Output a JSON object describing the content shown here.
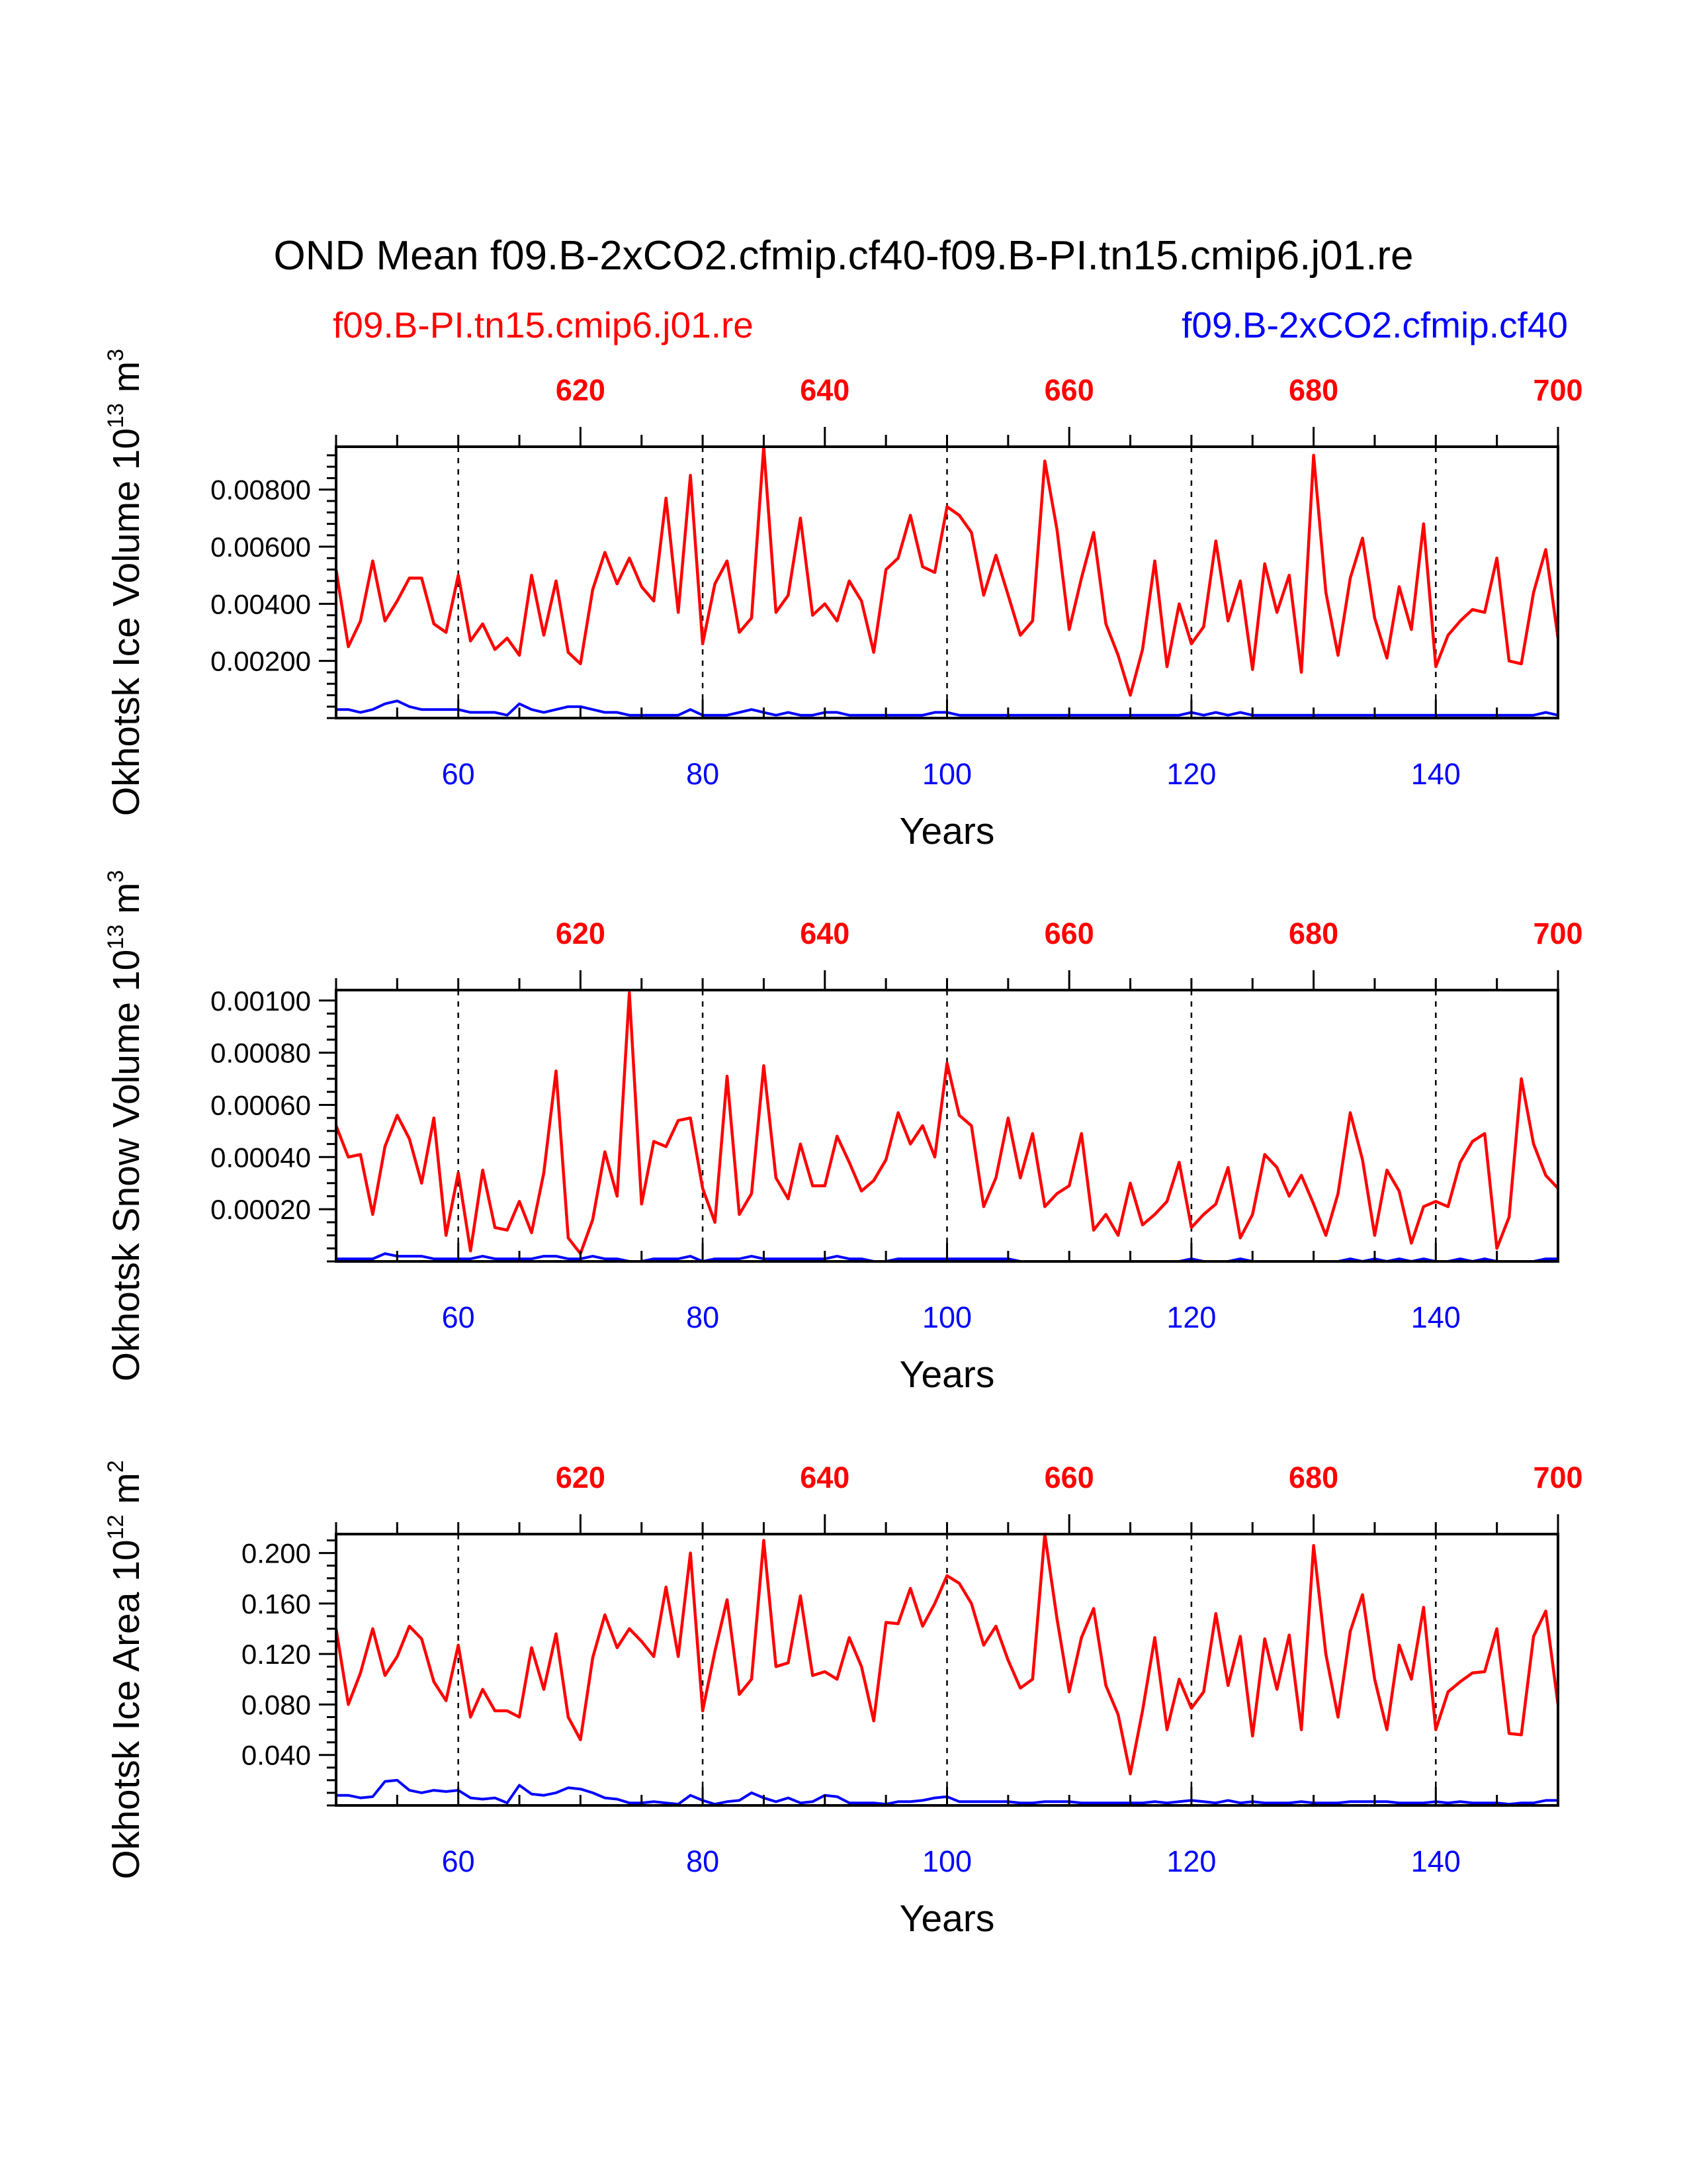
{
  "title": "OND Mean f09.B-2xCO2.cfmip.cf40-f09.B-PI.tn15.cmip6.j01.re",
  "legend": {
    "red": "f09.B-PI.tn15.cmip6.j01.re",
    "blue": "f09.B-2xCO2.cfmip.cf40"
  },
  "colors": {
    "red": "#ff0000",
    "blue": "#0000ff",
    "axis": "#000000"
  },
  "chart_data": [
    {
      "type": "line",
      "ylabel_main": "Okhotsk Ice Volume 10",
      "ylabel_exp": "13",
      "ylabel_unit": "m",
      "ylabel_unit_exp": "3",
      "xlabel": "Years",
      "xlim": [
        50,
        150
      ],
      "ylim": [
        0,
        0.0095
      ],
      "top_xlim": [
        600,
        700
      ],
      "top_ticks": [
        "620",
        "640",
        "660",
        "680",
        "700"
      ],
      "top_tick_values": [
        620,
        640,
        660,
        680,
        700
      ],
      "bottom_ticks": [
        "60",
        "80",
        "100",
        "120",
        "140"
      ],
      "bottom_tick_values": [
        60,
        80,
        100,
        120,
        140
      ],
      "y_ticks": [
        "0.00200",
        "0.00400",
        "0.00600",
        "0.00800"
      ],
      "y_tick_values": [
        0.002,
        0.004,
        0.006,
        0.008
      ],
      "y_minor_step": 0.0004,
      "x": [
        50,
        51,
        52,
        53,
        54,
        55,
        56,
        57,
        58,
        59,
        60,
        61,
        62,
        63,
        64,
        65,
        66,
        67,
        68,
        69,
        70,
        71,
        72,
        73,
        74,
        75,
        76,
        77,
        78,
        79,
        80,
        81,
        82,
        83,
        84,
        85,
        86,
        87,
        88,
        89,
        90,
        91,
        92,
        93,
        94,
        95,
        96,
        97,
        98,
        99,
        100,
        101,
        102,
        103,
        104,
        105,
        106,
        107,
        108,
        109,
        110,
        111,
        112,
        113,
        114,
        115,
        116,
        117,
        118,
        119,
        120,
        121,
        122,
        123,
        124,
        125,
        126,
        127,
        128,
        129,
        130,
        131,
        132,
        133,
        134,
        135,
        136,
        137,
        138,
        139,
        140,
        141,
        142,
        143,
        144,
        145,
        146,
        147,
        148,
        149,
        150
      ],
      "series": [
        {
          "name": "f09.B-PI.tn15.cmip6.j01.re",
          "color": "#ff0000",
          "values": [
            0.0052,
            0.0025,
            0.0034,
            0.0055,
            0.0034,
            0.0041,
            0.0049,
            0.0049,
            0.0033,
            0.003,
            0.005,
            0.0027,
            0.0033,
            0.0024,
            0.0028,
            0.0022,
            0.005,
            0.0029,
            0.0048,
            0.0023,
            0.0019,
            0.0045,
            0.0058,
            0.0047,
            0.0056,
            0.0046,
            0.0041,
            0.0077,
            0.0037,
            0.0085,
            0.0026,
            0.0047,
            0.0055,
            0.003,
            0.0035,
            0.0095,
            0.0037,
            0.0043,
            0.007,
            0.0036,
            0.004,
            0.0034,
            0.0048,
            0.0041,
            0.0023,
            0.0052,
            0.0056,
            0.0071,
            0.0053,
            0.0051,
            0.0074,
            0.0071,
            0.0065,
            0.0043,
            0.0057,
            0.0043,
            0.0029,
            0.0034,
            0.009,
            0.0066,
            0.0031,
            0.0049,
            0.0065,
            0.0033,
            0.0022,
            0.0008,
            0.0024,
            0.0055,
            0.0018,
            0.004,
            0.0026,
            0.0032,
            0.0062,
            0.0034,
            0.0048,
            0.0017,
            0.0054,
            0.0037,
            0.005,
            0.0016,
            0.0092,
            0.0044,
            0.0022,
            0.0049,
            0.0063,
            0.0035,
            0.0021,
            0.0046,
            0.0031,
            0.0068,
            0.0018,
            0.0029,
            0.0034,
            0.0038,
            0.0037,
            0.0056,
            0.002,
            0.0019,
            0.0044,
            0.0059,
            0.0028
          ]
        },
        {
          "name": "f09.B-2xCO2.cfmip.cf40",
          "color": "#0000ff",
          "values": [
            0.0003,
            0.0003,
            0.0002,
            0.0003,
            0.0005,
            0.0006,
            0.0004,
            0.0003,
            0.0003,
            0.0003,
            0.0003,
            0.0002,
            0.0002,
            0.0002,
            0.0001,
            0.0005,
            0.0003,
            0.0002,
            0.0003,
            0.0004,
            0.0004,
            0.0003,
            0.0002,
            0.0002,
            0.0001,
            0.0001,
            0.0001,
            0.0001,
            0.0001,
            0.0003,
            0.0001,
            0.0001,
            0.0001,
            0.0002,
            0.0003,
            0.0002,
            0.0001,
            0.0002,
            0.0001,
            0.0001,
            0.0002,
            0.0002,
            0.0001,
            0.0001,
            0.0001,
            0.0001,
            0.0001,
            0.0001,
            0.0001,
            0.0002,
            0.0002,
            0.0001,
            0.0001,
            0.0001,
            0.0001,
            0.0001,
            0.0001,
            0.0001,
            0.0001,
            0.0001,
            0.0001,
            0.0001,
            0.0001,
            0.0001,
            0.0001,
            0.0001,
            0.0001,
            0.0001,
            0.0001,
            0.0001,
            0.0002,
            0.0001,
            0.0002,
            0.0001,
            0.0002,
            0.0001,
            0.0001,
            0.0001,
            0.0001,
            0.0001,
            0.0001,
            0.0001,
            0.0001,
            0.0001,
            0.0001,
            0.0001,
            0.0001,
            0.0001,
            0.0001,
            0.0001,
            0.0001,
            0.0001,
            0.0001,
            0.0001,
            0.0001,
            0.0001,
            0.0001,
            0.0001,
            0.0001,
            0.0002,
            0.0001
          ]
        }
      ]
    },
    {
      "type": "line",
      "ylabel_main": "Okhotsk Snow Volume 10",
      "ylabel_exp": "13",
      "ylabel_unit": "m",
      "ylabel_unit_exp": "3",
      "xlabel": "Years",
      "xlim": [
        50,
        150
      ],
      "ylim": [
        0,
        0.00104
      ],
      "top_xlim": [
        600,
        700
      ],
      "top_ticks": [
        "620",
        "640",
        "660",
        "680",
        "700"
      ],
      "top_tick_values": [
        620,
        640,
        660,
        680,
        700
      ],
      "bottom_ticks": [
        "60",
        "80",
        "100",
        "120",
        "140"
      ],
      "bottom_tick_values": [
        60,
        80,
        100,
        120,
        140
      ],
      "y_ticks": [
        "0.00020",
        "0.00040",
        "0.00060",
        "0.00080",
        "0.00100"
      ],
      "y_tick_values": [
        0.0002,
        0.0004,
        0.0006,
        0.0008,
        0.001
      ],
      "y_minor_step": 5e-05,
      "x": [
        50,
        51,
        52,
        53,
        54,
        55,
        56,
        57,
        58,
        59,
        60,
        61,
        62,
        63,
        64,
        65,
        66,
        67,
        68,
        69,
        70,
        71,
        72,
        73,
        74,
        75,
        76,
        77,
        78,
        79,
        80,
        81,
        82,
        83,
        84,
        85,
        86,
        87,
        88,
        89,
        90,
        91,
        92,
        93,
        94,
        95,
        96,
        97,
        98,
        99,
        100,
        101,
        102,
        103,
        104,
        105,
        106,
        107,
        108,
        109,
        110,
        111,
        112,
        113,
        114,
        115,
        116,
        117,
        118,
        119,
        120,
        121,
        122,
        123,
        124,
        125,
        126,
        127,
        128,
        129,
        130,
        131,
        132,
        133,
        134,
        135,
        136,
        137,
        138,
        139,
        140,
        141,
        142,
        143,
        144,
        145,
        146,
        147,
        148,
        149,
        150
      ],
      "series": [
        {
          "name": "f09.B-PI.tn15.cmip6.j01.re",
          "color": "#ff0000",
          "values": [
            0.00052,
            0.0004,
            0.00041,
            0.00018,
            0.00044,
            0.00056,
            0.00047,
            0.0003,
            0.00055,
            0.0001,
            0.00034,
            4e-05,
            0.00035,
            0.00013,
            0.00012,
            0.00023,
            0.00011,
            0.00034,
            0.00073,
            9e-05,
            3e-05,
            0.00016,
            0.00042,
            0.00025,
            0.00103,
            0.00022,
            0.00046,
            0.00044,
            0.00054,
            0.00055,
            0.00028,
            0.00015,
            0.00071,
            0.00018,
            0.00026,
            0.00075,
            0.00032,
            0.00024,
            0.00045,
            0.00029,
            0.00029,
            0.00048,
            0.00038,
            0.00027,
            0.00031,
            0.00039,
            0.00057,
            0.00045,
            0.00052,
            0.0004,
            0.00076,
            0.00056,
            0.00052,
            0.00021,
            0.00032,
            0.00055,
            0.00032,
            0.00049,
            0.00021,
            0.00026,
            0.00029,
            0.00049,
            0.00012,
            0.00018,
            0.0001,
            0.0003,
            0.00014,
            0.00018,
            0.00023,
            0.00038,
            0.00013,
            0.00018,
            0.00022,
            0.00036,
            9e-05,
            0.00018,
            0.00041,
            0.00036,
            0.00025,
            0.00033,
            0.00022,
            0.0001,
            0.00026,
            0.00057,
            0.00039,
            0.0001,
            0.00035,
            0.00027,
            7e-05,
            0.00021,
            0.00023,
            0.00021,
            0.00038,
            0.00046,
            0.00049,
            5e-05,
            0.00017,
            0.0007,
            0.00045,
            0.00033,
            0.00028
          ]
        },
        {
          "name": "f09.B-2xCO2.cfmip.cf40",
          "color": "#0000ff",
          "values": [
            1e-05,
            1e-05,
            1e-05,
            1e-05,
            3e-05,
            2e-05,
            2e-05,
            2e-05,
            1e-05,
            1e-05,
            1e-05,
            1e-05,
            2e-05,
            1e-05,
            1e-05,
            1e-05,
            1e-05,
            2e-05,
            2e-05,
            1e-05,
            1e-05,
            2e-05,
            1e-05,
            1e-05,
            0.0,
            0.0,
            1e-05,
            1e-05,
            1e-05,
            2e-05,
            0.0,
            1e-05,
            1e-05,
            1e-05,
            2e-05,
            1e-05,
            1e-05,
            1e-05,
            1e-05,
            1e-05,
            1e-05,
            2e-05,
            1e-05,
            1e-05,
            0.0,
            0.0,
            1e-05,
            1e-05,
            1e-05,
            1e-05,
            1e-05,
            1e-05,
            1e-05,
            1e-05,
            1e-05,
            1e-05,
            0.0,
            0.0,
            0.0,
            0.0,
            0.0,
            0.0,
            0.0,
            0.0,
            0.0,
            0.0,
            0.0,
            0.0,
            0.0,
            0.0,
            1e-05,
            0.0,
            0.0,
            0.0,
            1e-05,
            0.0,
            0.0,
            0.0,
            0.0,
            0.0,
            0.0,
            0.0,
            0.0,
            1e-05,
            0.0,
            1e-05,
            0.0,
            1e-05,
            0.0,
            1e-05,
            0.0,
            0.0,
            1e-05,
            0.0,
            1e-05,
            0.0,
            0.0,
            0.0,
            0.0,
            1e-05,
            1e-05
          ]
        }
      ]
    },
    {
      "type": "line",
      "ylabel_main": "Okhotsk Ice Area 10",
      "ylabel_exp": "12",
      "ylabel_unit": "m",
      "ylabel_unit_exp": "2",
      "xlabel": "Years",
      "xlim": [
        50,
        150
      ],
      "ylim": [
        0,
        0.215
      ],
      "top_xlim": [
        600,
        700
      ],
      "top_ticks": [
        "620",
        "640",
        "660",
        "680",
        "700"
      ],
      "top_tick_values": [
        620,
        640,
        660,
        680,
        700
      ],
      "bottom_ticks": [
        "60",
        "80",
        "100",
        "120",
        "140"
      ],
      "bottom_tick_values": [
        60,
        80,
        100,
        120,
        140
      ],
      "y_ticks": [
        "0.040",
        "0.080",
        "0.120",
        "0.160",
        "0.200"
      ],
      "y_tick_values": [
        0.04,
        0.08,
        0.12,
        0.16,
        0.2
      ],
      "y_minor_step": 0.01,
      "x": [
        50,
        51,
        52,
        53,
        54,
        55,
        56,
        57,
        58,
        59,
        60,
        61,
        62,
        63,
        64,
        65,
        66,
        67,
        68,
        69,
        70,
        71,
        72,
        73,
        74,
        75,
        76,
        77,
        78,
        79,
        80,
        81,
        82,
        83,
        84,
        85,
        86,
        87,
        88,
        89,
        90,
        91,
        92,
        93,
        94,
        95,
        96,
        97,
        98,
        99,
        100,
        101,
        102,
        103,
        104,
        105,
        106,
        107,
        108,
        109,
        110,
        111,
        112,
        113,
        114,
        115,
        116,
        117,
        118,
        119,
        120,
        121,
        122,
        123,
        124,
        125,
        126,
        127,
        128,
        129,
        130,
        131,
        132,
        133,
        134,
        135,
        136,
        137,
        138,
        139,
        140,
        141,
        142,
        143,
        144,
        145,
        146,
        147,
        148,
        149,
        150
      ],
      "series": [
        {
          "name": "f09.B-PI.tn15.cmip6.j01.re",
          "color": "#ff0000",
          "values": [
            0.14,
            0.08,
            0.105,
            0.14,
            0.103,
            0.118,
            0.142,
            0.132,
            0.098,
            0.083,
            0.127,
            0.07,
            0.092,
            0.075,
            0.075,
            0.07,
            0.125,
            0.092,
            0.136,
            0.07,
            0.052,
            0.117,
            0.151,
            0.125,
            0.14,
            0.13,
            0.118,
            0.173,
            0.118,
            0.2,
            0.075,
            0.122,
            0.163,
            0.088,
            0.1,
            0.21,
            0.11,
            0.113,
            0.166,
            0.103,
            0.106,
            0.1,
            0.133,
            0.11,
            0.067,
            0.145,
            0.144,
            0.172,
            0.142,
            0.16,
            0.182,
            0.176,
            0.16,
            0.127,
            0.142,
            0.115,
            0.093,
            0.1,
            0.215,
            0.148,
            0.09,
            0.133,
            0.156,
            0.095,
            0.072,
            0.025,
            0.075,
            0.133,
            0.06,
            0.1,
            0.077,
            0.09,
            0.152,
            0.095,
            0.134,
            0.055,
            0.132,
            0.092,
            0.135,
            0.06,
            0.206,
            0.12,
            0.07,
            0.138,
            0.167,
            0.1,
            0.06,
            0.127,
            0.1,
            0.157,
            0.06,
            0.09,
            0.098,
            0.105,
            0.106,
            0.14,
            0.057,
            0.056,
            0.134,
            0.154,
            0.08
          ]
        },
        {
          "name": "f09.B-2xCO2.cfmip.cf40",
          "color": "#0000ff",
          "values": [
            0.008,
            0.008,
            0.006,
            0.007,
            0.019,
            0.02,
            0.012,
            0.01,
            0.012,
            0.011,
            0.012,
            0.006,
            0.005,
            0.006,
            0.002,
            0.016,
            0.009,
            0.008,
            0.01,
            0.014,
            0.013,
            0.01,
            0.006,
            0.005,
            0.002,
            0.002,
            0.003,
            0.002,
            0.001,
            0.008,
            0.004,
            0.001,
            0.003,
            0.004,
            0.01,
            0.006,
            0.003,
            0.006,
            0.002,
            0.003,
            0.008,
            0.007,
            0.002,
            0.002,
            0.002,
            0.001,
            0.003,
            0.003,
            0.004,
            0.006,
            0.007,
            0.003,
            0.003,
            0.003,
            0.003,
            0.003,
            0.002,
            0.002,
            0.003,
            0.003,
            0.003,
            0.002,
            0.002,
            0.002,
            0.002,
            0.002,
            0.002,
            0.003,
            0.002,
            0.003,
            0.004,
            0.003,
            0.002,
            0.004,
            0.002,
            0.003,
            0.002,
            0.002,
            0.002,
            0.003,
            0.002,
            0.002,
            0.002,
            0.003,
            0.003,
            0.003,
            0.003,
            0.002,
            0.002,
            0.002,
            0.003,
            0.002,
            0.003,
            0.002,
            0.002,
            0.002,
            0.001,
            0.002,
            0.002,
            0.004,
            0.004
          ]
        }
      ]
    }
  ]
}
